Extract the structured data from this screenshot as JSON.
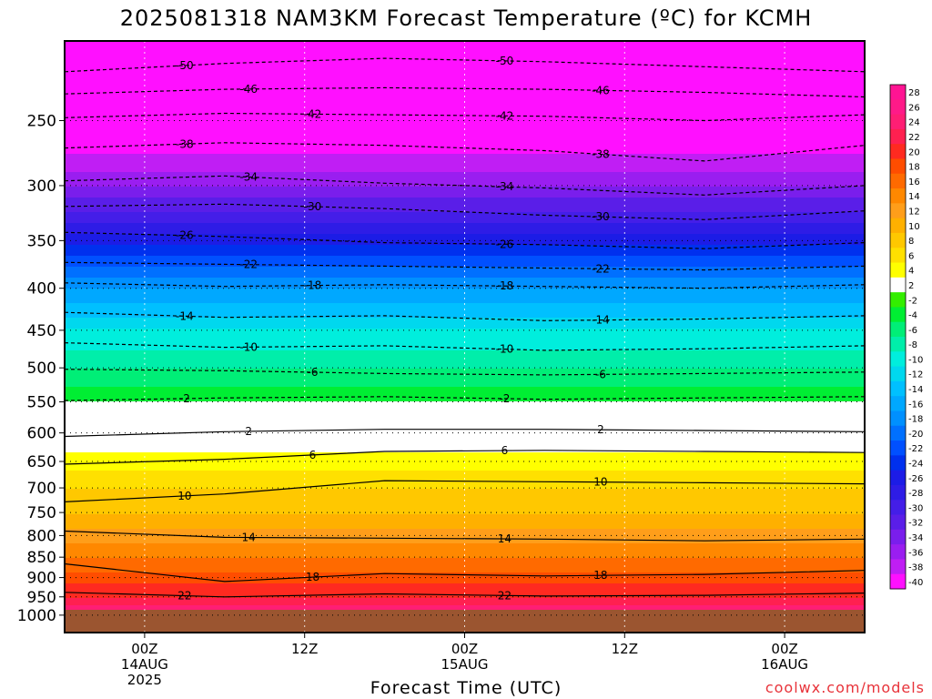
{
  "title": "2025081318 NAM3KM Forecast Temperature (ºC) for KCMH",
  "credit": "coolwx.com/models",
  "chart_data": {
    "type": "heatmap",
    "title": "2025081318 NAM3KM Forecast Temperature (ºC) for KCMH",
    "xlabel": "Forecast Time (UTC)",
    "ylabel": "",
    "x_range_hours": [
      -6,
      54
    ],
    "x_ticks": [
      {
        "hour": 0,
        "lines": [
          "00Z",
          "14AUG",
          "2025"
        ]
      },
      {
        "hour": 12,
        "lines": [
          "12Z"
        ]
      },
      {
        "hour": 24,
        "lines": [
          "00Z",
          "15AUG"
        ]
      },
      {
        "hour": 36,
        "lines": [
          "12Z"
        ]
      },
      {
        "hour": 48,
        "lines": [
          "00Z",
          "16AUG"
        ]
      }
    ],
    "y_range_hpa": [
      1050,
      200
    ],
    "y_scale": "log",
    "y_ticks": [
      250,
      300,
      350,
      400,
      450,
      500,
      550,
      600,
      650,
      700,
      750,
      800,
      850,
      900,
      950,
      1000
    ],
    "grid": true,
    "legend_placement": "right",
    "colorbar_labels": [
      "28",
      "26",
      "24",
      "22",
      "20",
      "18",
      "16",
      "14",
      "12",
      "10",
      "8",
      "6",
      "4",
      "2",
      "-2",
      "-4",
      "-6",
      "-8",
      "-10",
      "-12",
      "-14",
      "-16",
      "-18",
      "-20",
      "-22",
      "-24",
      "-26",
      "-28",
      "-30",
      "-32",
      "-34",
      "-36",
      "-38",
      "-40"
    ],
    "colorbar_colors": [
      "#ff1493",
      "#ff1a88",
      "#ff1e74",
      "#ff2050",
      "#ff2a20",
      "#ff4d00",
      "#ff6a00",
      "#ff8800",
      "#ff9e1a",
      "#ffb000",
      "#ffc800",
      "#ffe000",
      "#ffff00",
      "#ffffff",
      "#33ee00",
      "#00ee33",
      "#00ee77",
      "#00eeaa",
      "#00eedd",
      "#00d8ee",
      "#00c0ff",
      "#00a8ff",
      "#0090ff",
      "#0070ff",
      "#0050ff",
      "#0030ee",
      "#1c1ce6",
      "#2e1ce6",
      "#441ee8",
      "#5a1ee8",
      "#7a1eec",
      "#9a1ef0",
      "#c01ef4",
      "#ff10ff"
    ],
    "temperature_profile": [
      {
        "pressure": 1000,
        "temp": 26
      },
      {
        "pressure": 950,
        "temp": 22
      },
      {
        "pressure": 900,
        "temp": 19
      },
      {
        "pressure": 850,
        "temp": 16
      },
      {
        "pressure": 800,
        "temp": 13
      },
      {
        "pressure": 750,
        "temp": 10
      },
      {
        "pressure": 700,
        "temp": 8
      },
      {
        "pressure": 650,
        "temp": 5
      },
      {
        "pressure": 600,
        "temp": 2
      },
      {
        "pressure": 550,
        "temp": -2
      },
      {
        "pressure": 500,
        "temp": -6
      },
      {
        "pressure": 450,
        "temp": -10
      },
      {
        "pressure": 400,
        "temp": -16
      },
      {
        "pressure": 350,
        "temp": -25
      },
      {
        "pressure": 300,
        "temp": -34
      },
      {
        "pressure": 250,
        "temp": -42
      },
      {
        "pressure": 200,
        "temp": -50
      }
    ],
    "contours": [
      {
        "value": -50,
        "dashed": true,
        "label": "-50",
        "pressures": [
          218,
          213,
          210,
          212,
          215,
          218
        ]
      },
      {
        "value": -46,
        "dashed": true,
        "label": "-46",
        "pressures": [
          232,
          229,
          228,
          229,
          231,
          234
        ]
      },
      {
        "value": -42,
        "dashed": true,
        "label": "-42",
        "pressures": [
          248,
          245,
          246,
          247,
          250,
          246
        ]
      },
      {
        "value": -38,
        "dashed": true,
        "label": "-38",
        "pressures": [
          270,
          266,
          268,
          272,
          280,
          268
        ]
      },
      {
        "value": -34,
        "dashed": true,
        "label": "-34",
        "pressures": [
          296,
          292,
          298,
          302,
          308,
          300
        ]
      },
      {
        "value": -30,
        "dashed": true,
        "label": "-30",
        "pressures": [
          318,
          316,
          320,
          326,
          330,
          322
        ]
      },
      {
        "value": -26,
        "dashed": true,
        "label": "-26",
        "pressures": [
          342,
          346,
          352,
          354,
          358,
          352
        ]
      },
      {
        "value": -22,
        "dashed": true,
        "label": "-22",
        "pressures": [
          372,
          374,
          376,
          378,
          380,
          376
        ]
      },
      {
        "value": -18,
        "dashed": true,
        "label": "-18",
        "pressures": [
          394,
          398,
          396,
          398,
          400,
          396
        ]
      },
      {
        "value": -14,
        "dashed": true,
        "label": "-14",
        "pressures": [
          428,
          434,
          432,
          438,
          436,
          432
        ]
      },
      {
        "value": -10,
        "dashed": true,
        "label": "-10",
        "pressures": [
          466,
          472,
          470,
          476,
          474,
          470
        ]
      },
      {
        "value": -6,
        "dashed": true,
        "label": "-6",
        "pressures": [
          502,
          504,
          508,
          510,
          508,
          506
        ]
      },
      {
        "value": -2,
        "dashed": true,
        "label": "-2",
        "pressures": [
          548,
          544,
          542,
          546,
          544,
          542
        ]
      },
      {
        "value": 2,
        "dashed": false,
        "label": "2",
        "pressures": [
          606,
          598,
          594,
          594,
          596,
          598
        ]
      },
      {
        "value": 6,
        "dashed": false,
        "label": "6",
        "pressures": [
          655,
          646,
          632,
          630,
          632,
          634
        ]
      },
      {
        "value": 10,
        "dashed": false,
        "label": "10",
        "pressures": [
          728,
          712,
          686,
          688,
          690,
          692
        ]
      },
      {
        "value": 14,
        "dashed": false,
        "label": "14",
        "pressures": [
          790,
          804,
          806,
          808,
          812,
          808
        ]
      },
      {
        "value": 18,
        "dashed": false,
        "label": "18",
        "pressures": [
          866,
          910,
          890,
          896,
          892,
          882
        ]
      },
      {
        "value": 22,
        "dashed": false,
        "label": "22",
        "pressures": [
          938,
          950,
          942,
          948,
          946,
          940
        ]
      }
    ]
  }
}
